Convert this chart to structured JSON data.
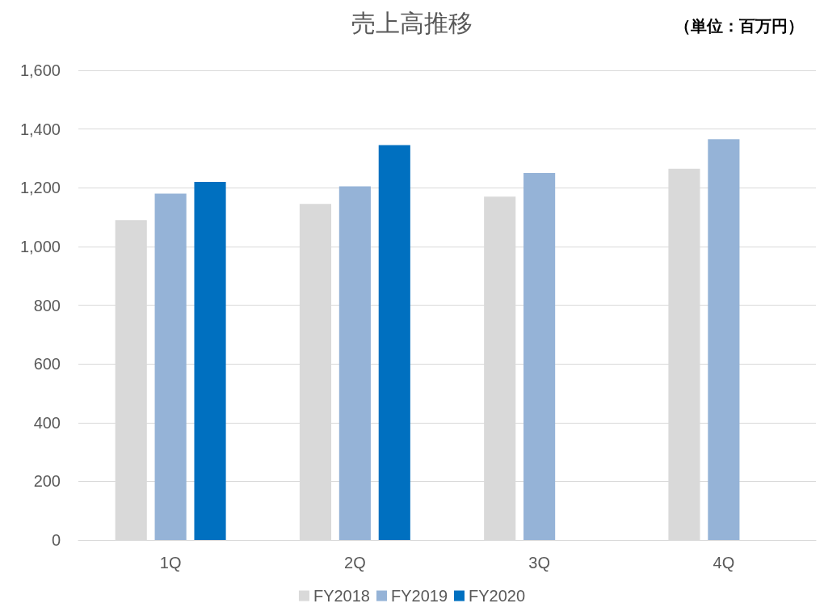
{
  "chart_data": {
    "type": "bar",
    "title": "売上高推移",
    "annotations": [
      "（単位：百万円）"
    ],
    "categories": [
      "1Q",
      "2Q",
      "3Q",
      "4Q"
    ],
    "series": [
      {
        "name": "FY2018",
        "color": "#d9d9d9",
        "values": [
          1090,
          1145,
          1170,
          1265
        ]
      },
      {
        "name": "FY2019",
        "color": "#95b3d7",
        "values": [
          1180,
          1205,
          1250,
          1365
        ]
      },
      {
        "name": "FY2020",
        "color": "#0070c0",
        "values": [
          1220,
          1345,
          null,
          null
        ]
      }
    ],
    "ylim": [
      0,
      1600
    ],
    "yticks": [
      0,
      200,
      400,
      600,
      800,
      {
        "value": 1000,
        "label": "1,000"
      },
      {
        "value": 1200,
        "label": "1,200"
      },
      {
        "value": 1400,
        "label": "1,400"
      },
      {
        "value": 1600,
        "label": "1,600"
      }
    ],
    "grid": "y",
    "legend": "bottom"
  }
}
